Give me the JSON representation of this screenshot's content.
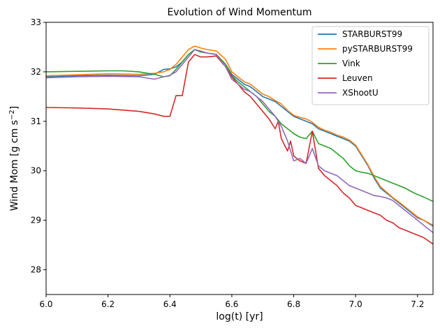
{
  "chart_data": {
    "type": "line",
    "title": "Evolution of Wind Momentum",
    "xlabel": "log(t) [yr]",
    "ylabel_main": "Wind Mom [g cm s",
    "ylabel_sup": "−2",
    "ylabel_close": "]",
    "xlim": [
      6.0,
      7.25
    ],
    "ylim": [
      27.5,
      33.0
    ],
    "xticks": [
      6.0,
      6.2,
      6.4,
      6.6,
      6.8,
      7.0,
      7.2
    ],
    "xtick_labels": [
      "6.0",
      "6.2",
      "6.4",
      "6.6",
      "6.8",
      "7.0",
      "7.2"
    ],
    "yticks": [
      28,
      29,
      30,
      31,
      32,
      33
    ],
    "ytick_labels": [
      "28",
      "29",
      "30",
      "31",
      "32",
      "33"
    ],
    "legend_position": "top-right",
    "series": [
      {
        "name": "STARBURST99",
        "color": "#1f77b4",
        "x": [
          6.0,
          6.1,
          6.2,
          6.3,
          6.35,
          6.38,
          6.4,
          6.42,
          6.44,
          6.46,
          6.48,
          6.5,
          6.52,
          6.55,
          6.58,
          6.6,
          6.62,
          6.64,
          6.66,
          6.68,
          6.7,
          6.72,
          6.74,
          6.76,
          6.78,
          6.8,
          6.82,
          6.84,
          6.86,
          6.88,
          6.9,
          6.92,
          6.94,
          6.96,
          6.98,
          7.0,
          7.02,
          7.04,
          7.06,
          7.08,
          7.1,
          7.12,
          7.14,
          7.16,
          7.18,
          7.2,
          7.22,
          7.25
        ],
        "y": [
          31.9,
          31.92,
          31.93,
          31.92,
          31.95,
          32.05,
          32.06,
          32.1,
          32.2,
          32.35,
          32.45,
          32.4,
          32.38,
          32.35,
          32.15,
          31.95,
          31.85,
          31.75,
          31.7,
          31.6,
          31.5,
          31.45,
          31.4,
          31.3,
          31.2,
          31.1,
          31.05,
          31.0,
          30.95,
          30.85,
          30.8,
          30.75,
          30.7,
          30.65,
          30.6,
          30.5,
          30.3,
          30.1,
          29.85,
          29.65,
          29.55,
          29.45,
          29.35,
          29.25,
          29.15,
          29.05,
          29.0,
          28.88
        ]
      },
      {
        "name": "pySTARBURST99",
        "color": "#ff7f0e",
        "x": [
          6.0,
          6.1,
          6.2,
          6.3,
          6.35,
          6.38,
          6.4,
          6.42,
          6.44,
          6.46,
          6.48,
          6.5,
          6.52,
          6.55,
          6.58,
          6.6,
          6.62,
          6.64,
          6.66,
          6.68,
          6.7,
          6.72,
          6.74,
          6.76,
          6.78,
          6.8,
          6.82,
          6.84,
          6.86,
          6.88,
          6.9,
          6.92,
          6.94,
          6.96,
          6.98,
          7.0,
          7.02,
          7.04,
          7.06,
          7.08,
          7.1,
          7.12,
          7.14,
          7.16,
          7.18,
          7.2,
          7.22,
          7.25
        ],
        "y": [
          31.92,
          31.94,
          31.96,
          31.95,
          31.97,
          32.0,
          32.05,
          32.15,
          32.3,
          32.45,
          32.52,
          32.48,
          32.45,
          32.42,
          32.25,
          32.0,
          31.9,
          31.8,
          31.75,
          31.65,
          31.55,
          31.5,
          31.42,
          31.35,
          31.22,
          31.12,
          31.08,
          31.05,
          30.98,
          30.88,
          30.82,
          30.78,
          30.72,
          30.68,
          30.62,
          30.52,
          30.32,
          30.12,
          29.88,
          29.68,
          29.57,
          29.46,
          29.37,
          29.27,
          29.17,
          29.07,
          29.0,
          28.9
        ]
      },
      {
        "name": "Vink",
        "color": "#2ca02c",
        "x": [
          6.0,
          6.1,
          6.2,
          6.25,
          6.3,
          6.35,
          6.38,
          6.4,
          6.42,
          6.44,
          6.46,
          6.48,
          6.5,
          6.52,
          6.55,
          6.58,
          6.6,
          6.62,
          6.64,
          6.66,
          6.68,
          6.7,
          6.72,
          6.74,
          6.76,
          6.78,
          6.8,
          6.82,
          6.84,
          6.86,
          6.88,
          6.9,
          6.92,
          6.94,
          6.96,
          6.98,
          7.0,
          7.02,
          7.04,
          7.06,
          7.08,
          7.1,
          7.12,
          7.14,
          7.16,
          7.18,
          7.2,
          7.22,
          7.25
        ],
        "y": [
          32.0,
          32.01,
          32.02,
          32.02,
          32.0,
          31.95,
          31.9,
          31.92,
          32.05,
          32.2,
          32.35,
          32.45,
          32.4,
          32.38,
          32.35,
          32.15,
          31.92,
          31.8,
          31.7,
          31.6,
          31.5,
          31.35,
          31.2,
          31.1,
          30.95,
          30.85,
          30.75,
          30.68,
          30.65,
          30.8,
          30.55,
          30.5,
          30.45,
          30.35,
          30.25,
          30.1,
          30.0,
          29.97,
          29.95,
          29.9,
          29.85,
          29.8,
          29.75,
          29.7,
          29.65,
          29.58,
          29.52,
          29.47,
          29.38
        ]
      },
      {
        "name": "Leuven",
        "color": "#d62728",
        "x": [
          6.0,
          6.1,
          6.2,
          6.3,
          6.35,
          6.38,
          6.4,
          6.42,
          6.44,
          6.46,
          6.48,
          6.5,
          6.52,
          6.55,
          6.58,
          6.6,
          6.62,
          6.64,
          6.66,
          6.68,
          6.7,
          6.72,
          6.74,
          6.75,
          6.76,
          6.78,
          6.79,
          6.8,
          6.82,
          6.84,
          6.86,
          6.88,
          6.9,
          6.92,
          6.94,
          6.96,
          6.98,
          7.0,
          7.02,
          7.04,
          7.06,
          7.08,
          7.1,
          7.12,
          7.14,
          7.16,
          7.18,
          7.2,
          7.22,
          7.25
        ],
        "y": [
          31.28,
          31.27,
          31.25,
          31.2,
          31.15,
          31.1,
          31.1,
          31.52,
          31.52,
          32.2,
          32.35,
          32.3,
          32.3,
          32.32,
          32.1,
          31.9,
          31.75,
          31.6,
          31.5,
          31.35,
          31.2,
          31.05,
          30.85,
          31.0,
          30.65,
          30.4,
          30.6,
          30.3,
          30.2,
          30.15,
          30.8,
          30.05,
          29.9,
          29.8,
          29.7,
          29.55,
          29.45,
          29.3,
          29.25,
          29.2,
          29.15,
          29.1,
          29.0,
          28.95,
          28.85,
          28.8,
          28.75,
          28.7,
          28.65,
          28.52
        ]
      },
      {
        "name": "XShootU",
        "color": "#9467bd",
        "x": [
          6.0,
          6.1,
          6.2,
          6.3,
          6.35,
          6.38,
          6.4,
          6.42,
          6.44,
          6.46,
          6.48,
          6.5,
          6.52,
          6.55,
          6.58,
          6.6,
          6.62,
          6.64,
          6.66,
          6.68,
          6.7,
          6.72,
          6.74,
          6.76,
          6.78,
          6.8,
          6.82,
          6.84,
          6.86,
          6.88,
          6.9,
          6.92,
          6.94,
          6.96,
          6.98,
          7.0,
          7.02,
          7.04,
          7.06,
          7.08,
          7.1,
          7.12,
          7.14,
          7.16,
          7.18,
          7.2,
          7.22,
          7.25
        ],
        "y": [
          31.88,
          31.9,
          31.91,
          31.9,
          31.85,
          31.9,
          31.93,
          32.0,
          32.15,
          32.3,
          32.45,
          32.42,
          32.38,
          32.35,
          32.1,
          31.85,
          31.75,
          31.65,
          31.6,
          31.5,
          31.4,
          31.25,
          31.1,
          30.9,
          30.6,
          30.2,
          30.25,
          30.15,
          30.45,
          30.1,
          30.0,
          29.95,
          29.9,
          29.8,
          29.7,
          29.65,
          29.6,
          29.55,
          29.5,
          29.48,
          29.45,
          29.4,
          29.3,
          29.2,
          29.1,
          29.0,
          28.9,
          28.75
        ]
      }
    ]
  }
}
